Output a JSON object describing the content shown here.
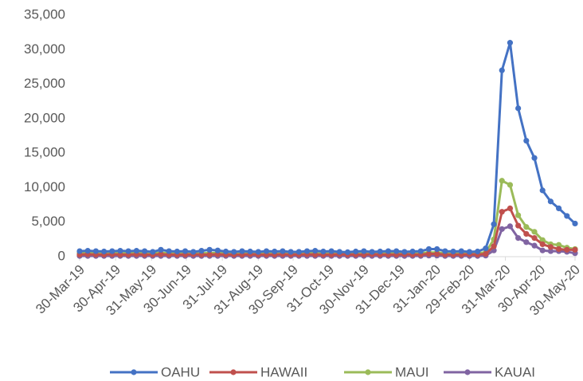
{
  "chart_data": {
    "type": "line",
    "x": [
      "2019-03-30",
      "2019-04-06",
      "2019-04-13",
      "2019-04-20",
      "2019-04-27",
      "2019-05-04",
      "2019-05-11",
      "2019-05-18",
      "2019-05-25",
      "2019-06-01",
      "2019-06-08",
      "2019-06-15",
      "2019-06-22",
      "2019-06-29",
      "2019-07-06",
      "2019-07-13",
      "2019-07-20",
      "2019-07-27",
      "2019-08-03",
      "2019-08-10",
      "2019-08-17",
      "2019-08-24",
      "2019-08-31",
      "2019-09-07",
      "2019-09-14",
      "2019-09-21",
      "2019-09-28",
      "2019-10-05",
      "2019-10-12",
      "2019-10-19",
      "2019-10-26",
      "2019-11-02",
      "2019-11-09",
      "2019-11-16",
      "2019-11-23",
      "2019-11-30",
      "2019-12-07",
      "2019-12-14",
      "2019-12-21",
      "2019-12-28",
      "2020-01-04",
      "2020-01-11",
      "2020-01-18",
      "2020-01-25",
      "2020-02-01",
      "2020-02-08",
      "2020-02-15",
      "2020-02-22",
      "2020-02-29",
      "2020-03-07",
      "2020-03-14",
      "2020-03-21",
      "2020-03-28",
      "2020-04-04",
      "2020-04-11",
      "2020-04-18",
      "2020-04-25",
      "2020-05-02",
      "2020-05-09",
      "2020-05-16",
      "2020-05-23",
      "2020-05-30"
    ],
    "series": [
      {
        "name": "OAHU",
        "color": "#4472C4",
        "values": [
          800,
          850,
          800,
          750,
          800,
          850,
          800,
          850,
          800,
          700,
          1000,
          800,
          750,
          800,
          700,
          850,
          1000,
          900,
          750,
          700,
          800,
          750,
          700,
          800,
          750,
          800,
          700,
          700,
          800,
          850,
          750,
          800,
          700,
          650,
          750,
          800,
          700,
          750,
          800,
          800,
          700,
          750,
          800,
          1100,
          1100,
          800,
          750,
          800,
          700,
          750,
          1200,
          4700,
          27000,
          31000,
          21500,
          16800,
          14300,
          9600,
          8000,
          7000,
          5900,
          4800
        ]
      },
      {
        "name": "HAWAII",
        "color": "#C0504D",
        "values": [
          300,
          350,
          300,
          300,
          350,
          300,
          300,
          350,
          300,
          300,
          350,
          300,
          300,
          300,
          350,
          300,
          300,
          350,
          300,
          300,
          300,
          350,
          300,
          300,
          300,
          350,
          300,
          300,
          350,
          300,
          300,
          300,
          350,
          300,
          300,
          300,
          350,
          300,
          300,
          300,
          350,
          300,
          300,
          400,
          400,
          300,
          300,
          300,
          350,
          300,
          400,
          1500,
          6500,
          7000,
          4500,
          3300,
          2700,
          1800,
          1400,
          1100,
          1000,
          1000
        ]
      },
      {
        "name": "MAUI",
        "color": "#9BBB59",
        "values": [
          500,
          550,
          500,
          500,
          550,
          500,
          500,
          550,
          500,
          500,
          550,
          500,
          500,
          500,
          550,
          500,
          500,
          550,
          500,
          500,
          500,
          550,
          500,
          500,
          500,
          550,
          500,
          500,
          550,
          500,
          500,
          500,
          550,
          500,
          500,
          500,
          550,
          500,
          500,
          500,
          550,
          500,
          500,
          600,
          600,
          500,
          500,
          500,
          550,
          500,
          600,
          2500,
          11000,
          10400,
          6000,
          4300,
          3600,
          2400,
          1800,
          1700,
          1300,
          1100
        ]
      },
      {
        "name": "KAUAI",
        "color": "#8064A2",
        "values": [
          100,
          100,
          100,
          100,
          100,
          100,
          100,
          100,
          100,
          100,
          100,
          100,
          100,
          100,
          100,
          100,
          100,
          100,
          100,
          100,
          100,
          100,
          100,
          100,
          100,
          100,
          100,
          100,
          100,
          100,
          100,
          100,
          100,
          100,
          100,
          100,
          100,
          100,
          100,
          100,
          100,
          100,
          100,
          150,
          150,
          100,
          100,
          100,
          100,
          100,
          150,
          900,
          4000,
          4400,
          2700,
          2100,
          1600,
          900,
          800,
          800,
          700,
          500
        ]
      }
    ],
    "xlim": [
      "2019-03-30",
      "2020-05-30"
    ],
    "xticks": [
      {
        "value": "2019-03-30",
        "label": "30-Mar-19"
      },
      {
        "value": "2019-04-30",
        "label": "30-Apr-19"
      },
      {
        "value": "2019-05-31",
        "label": "31-May-19"
      },
      {
        "value": "2019-06-30",
        "label": "30-Jun-19"
      },
      {
        "value": "2019-07-31",
        "label": "31-Jul-19"
      },
      {
        "value": "2019-08-31",
        "label": "31-Aug-19"
      },
      {
        "value": "2019-09-30",
        "label": "30-Sep-19"
      },
      {
        "value": "2019-10-31",
        "label": "31-Oct-19"
      },
      {
        "value": "2019-11-30",
        "label": "30-Nov-19"
      },
      {
        "value": "2019-12-31",
        "label": "31-Dec-19"
      },
      {
        "value": "2020-01-31",
        "label": "31-Jan-20"
      },
      {
        "value": "2020-02-29",
        "label": "29-Feb-20"
      },
      {
        "value": "2020-03-31",
        "label": "31-Mar-20"
      },
      {
        "value": "2020-04-30",
        "label": "30-Apr-20"
      },
      {
        "value": "2020-05-30",
        "label": "30-May-20"
      }
    ],
    "ylim": [
      0,
      35000
    ],
    "yticks": [
      0,
      {
        "value": 5000,
        "label": "5,000"
      },
      {
        "value": 10000,
        "label": "10,000"
      },
      {
        "value": 15000,
        "label": "15,000"
      },
      {
        "value": 20000,
        "label": "20,000"
      },
      {
        "value": 25000,
        "label": "25,000"
      },
      {
        "value": 30000,
        "label": "30,000"
      },
      {
        "value": 35000,
        "label": "35,000"
      }
    ],
    "grid": false,
    "legend": "bottom"
  }
}
